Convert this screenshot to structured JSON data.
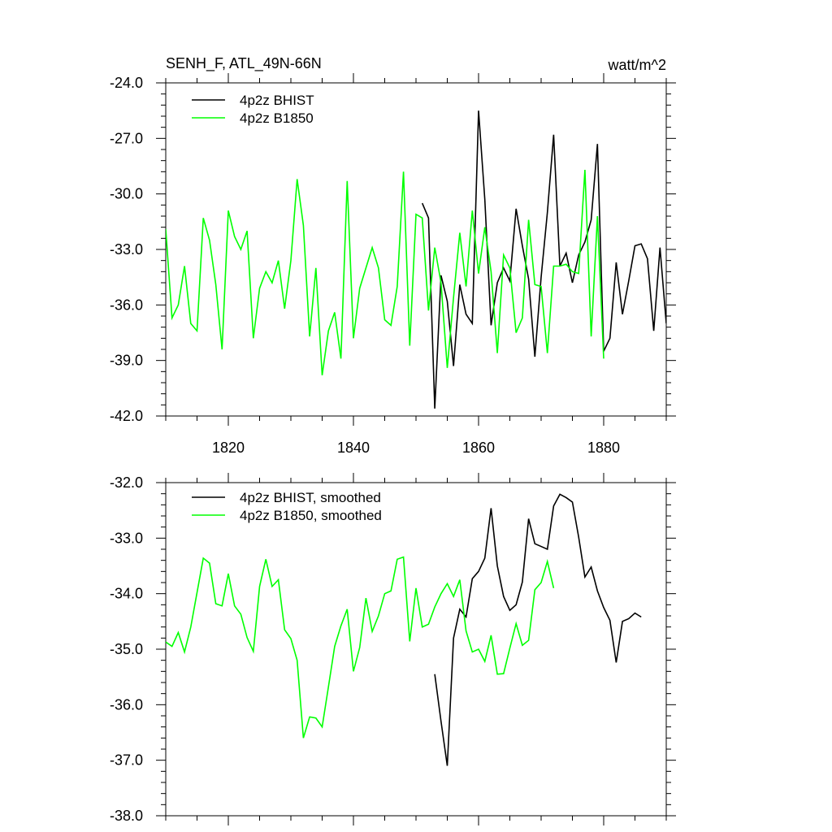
{
  "chart_data": [
    {
      "type": "line",
      "title": "SENH_F, ATL_49N-66N",
      "units": "watt/m^2",
      "xlim": [
        1810,
        1890
      ],
      "ylim": [
        -42.0,
        -24.0
      ],
      "x_ticks": [
        1820,
        1840,
        1860,
        1880
      ],
      "y_ticks": [
        "-24.0",
        "-27.0",
        "-30.0",
        "-33.0",
        "-36.0",
        "-39.0",
        "-42.0"
      ],
      "y_tick_values": [
        -24,
        -27,
        -30,
        -33,
        -36,
        -39,
        -42
      ],
      "legend_placement": "top-left",
      "series": [
        {
          "name": "4p2z BHIST",
          "color": "#000000",
          "x_start": 1851,
          "values": [
            -30.5,
            -31.3,
            -41.6,
            -34.4,
            -35.8,
            -39.3,
            -34.9,
            -36.5,
            -37.0,
            -25.5,
            -30.3,
            -37.1,
            -34.8,
            -34.0,
            -34.7,
            -30.8,
            -32.8,
            -34.6,
            -38.8,
            -34.5,
            -31.0,
            -26.8,
            -33.9,
            -33.2,
            -34.8,
            -33.3,
            -32.6,
            -31.4,
            -27.3,
            -38.5,
            -37.8,
            -33.7,
            -36.5,
            -34.7,
            -32.8,
            -32.7,
            -33.5,
            -37.4,
            -32.9,
            -37.0
          ]
        },
        {
          "name": "4p2z B1850",
          "color": "#00ff00",
          "x_start": 1810,
          "values": [
            -31.9,
            -36.7,
            -36.0,
            -33.9,
            -37.0,
            -37.4,
            -31.3,
            -32.5,
            -34.9,
            -38.4,
            -30.9,
            -32.3,
            -33.0,
            -32.0,
            -37.8,
            -35.1,
            -34.2,
            -34.8,
            -33.6,
            -36.2,
            -33.6,
            -29.2,
            -31.7,
            -37.7,
            -34.0,
            -39.8,
            -37.4,
            -36.4,
            -38.9,
            -29.3,
            -37.8,
            -35.1,
            -34.0,
            -32.9,
            -34.0,
            -36.8,
            -37.1,
            -35.0,
            -28.8,
            -38.2,
            -31.1,
            -31.3,
            -36.3,
            -32.9,
            -34.8,
            -39.4,
            -35.6,
            -32.1,
            -35.0,
            -30.9,
            -34.3,
            -31.8,
            -34.2,
            -38.6,
            -33.3,
            -34.0,
            -37.5,
            -36.7,
            -31.4,
            -34.9,
            -35.0,
            -38.6,
            -33.9,
            -33.9,
            -33.8,
            -34.2,
            -34.3,
            -28.7,
            -37.7,
            -31.2,
            -38.9
          ]
        }
      ]
    },
    {
      "type": "line",
      "xlim": [
        1810,
        1890
      ],
      "ylim": [
        -38.0,
        -32.0
      ],
      "x_ticks": [
        1820,
        1840,
        1860,
        1880
      ],
      "y_ticks": [
        "-32.0",
        "-33.0",
        "-34.0",
        "-35.0",
        "-36.0",
        "-37.0",
        "-38.0"
      ],
      "y_tick_values": [
        -32,
        -33,
        -34,
        -35,
        -36,
        -37,
        -38
      ],
      "legend_placement": "top-left",
      "series": [
        {
          "name": "4p2z BHIST, smoothed",
          "color": "#000000",
          "x_start": 1853,
          "values": [
            -35.45,
            -36.3,
            -37.1,
            -34.8,
            -34.28,
            -34.42,
            -33.73,
            -33.6,
            -33.36,
            -32.46,
            -33.5,
            -34.05,
            -34.3,
            -34.2,
            -33.79,
            -32.65,
            -33.1,
            -33.15,
            -33.2,
            -32.42,
            -32.21,
            -32.27,
            -32.35,
            -32.98,
            -33.7,
            -33.52,
            -33.95,
            -34.25,
            -34.48,
            -35.24,
            -34.5,
            -34.45,
            -34.35,
            -34.42
          ]
        },
        {
          "name": "4p2z B1850, smoothed",
          "color": "#00ff00",
          "x_start": 1810,
          "values": [
            -34.87,
            -34.95,
            -34.7,
            -35.05,
            -34.6,
            -33.98,
            -33.36,
            -33.45,
            -34.18,
            -34.22,
            -33.64,
            -34.22,
            -34.37,
            -34.79,
            -35.04,
            -33.87,
            -33.38,
            -33.87,
            -33.75,
            -34.65,
            -34.81,
            -35.2,
            -36.6,
            -36.22,
            -36.24,
            -36.4,
            -35.68,
            -34.95,
            -34.58,
            -34.28,
            -35.4,
            -34.97,
            -34.08,
            -34.68,
            -34.4,
            -34.0,
            -33.95,
            -33.38,
            -33.34,
            -34.86,
            -33.9,
            -34.6,
            -34.55,
            -34.24,
            -34.0,
            -33.82,
            -34.05,
            -33.75,
            -34.67,
            -35.05,
            -35.0,
            -35.22,
            -34.75,
            -35.45,
            -35.44,
            -34.98,
            -34.54,
            -34.93,
            -34.84,
            -33.93,
            -33.8,
            -33.42,
            -33.9
          ]
        }
      ]
    }
  ]
}
